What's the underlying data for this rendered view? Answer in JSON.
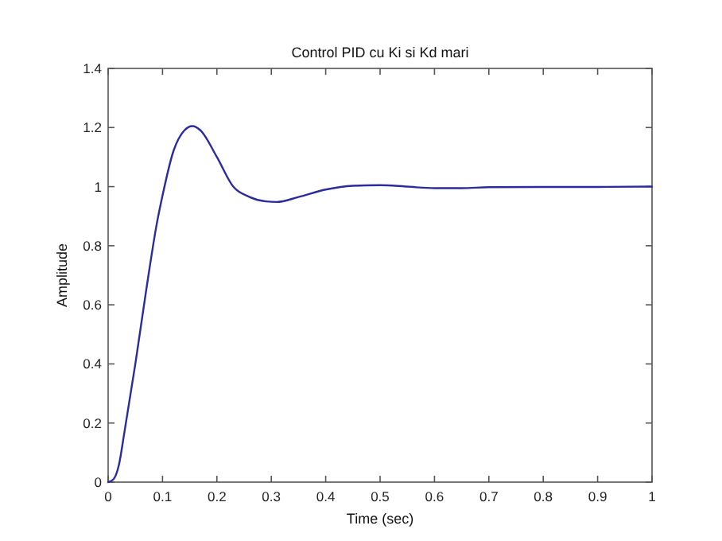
{
  "chart_data": {
    "type": "line",
    "title": "Control PID cu Ki si Kd mari",
    "xlabel": "Time (sec)",
    "ylabel": "Amplitude",
    "x": [
      0,
      0.01,
      0.02,
      0.03,
      0.05,
      0.07,
      0.09,
      0.1,
      0.12,
      0.14,
      0.155,
      0.17,
      0.2,
      0.23,
      0.26,
      0.29,
      0.31,
      0.35,
      0.4,
      0.45,
      0.5,
      0.55,
      0.6,
      0.65,
      0.7,
      0.8,
      0.9,
      1
    ],
    "series": [
      {
        "color": "#2b2b9c",
        "values": [
          0,
          0.01,
          0.06,
          0.17,
          0.4,
          0.65,
          0.88,
          0.97,
          1.12,
          1.19,
          1.205,
          1.19,
          1.1,
          1.0,
          0.965,
          0.95,
          0.948,
          0.965,
          0.99,
          1.003,
          1.005,
          1.0,
          0.995,
          0.995,
          0.998,
          0.999,
          0.999,
          1.0
        ]
      }
    ],
    "xlim": [
      0,
      1
    ],
    "ylim": [
      0,
      1.4
    ],
    "xticks": [
      0,
      0.1,
      0.2,
      0.3,
      0.4,
      0.5,
      0.6,
      0.7,
      0.8,
      0.9,
      1
    ],
    "yticks": [
      0,
      0.2,
      0.4,
      0.6,
      0.8,
      1,
      1.2,
      1.4
    ],
    "grid": false,
    "line_style": "solid",
    "marker": "none"
  }
}
